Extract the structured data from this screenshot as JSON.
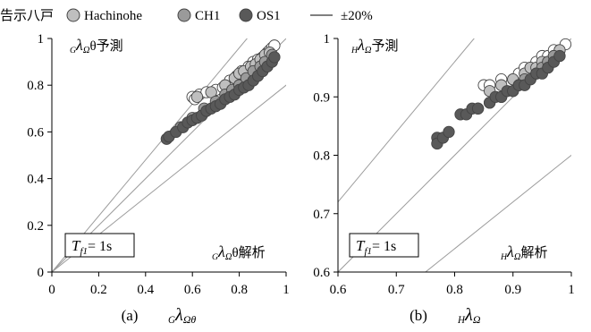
{
  "legend": {
    "lead": "告示八戸",
    "items": [
      {
        "label": "Hachinohe",
        "fill": "#bfbfbf"
      },
      {
        "label": "CH1",
        "fill": "#9a9a9a"
      },
      {
        "label": "OS1",
        "fill": "#595959"
      }
    ],
    "ref_line_label": "±20%"
  },
  "colors": {
    "white_points": "#ffffff",
    "ref_lines": "#9c9c9c",
    "axis": "#000000",
    "marker_edge": "#444444"
  },
  "chart_data": [
    {
      "type": "scatter",
      "panel_label": "(a)",
      "xlabel": "GλΩθ",
      "ylabel_annotation": "GλΩθ予測",
      "xlabel_annotation": "GλΩθ解析",
      "box_text": "Tf1= 1s",
      "xlim": [
        0,
        1
      ],
      "ylim": [
        0,
        1
      ],
      "xticks": [
        "0",
        "0.2",
        "0.4",
        "0.6",
        "0.8",
        "1"
      ],
      "yticks": [
        "0",
        "0.2",
        "0.4",
        "0.6",
        "0.8",
        "1"
      ],
      "ref_lines": [
        {
          "label": "1:1",
          "slope": 1.0
        },
        {
          "label": "+20%",
          "slope": 1.2
        },
        {
          "label": "-20%",
          "slope": 0.8
        }
      ],
      "series": [
        {
          "marker_fill": "#ffffff",
          "points": [
            [
              0.6,
              0.75
            ],
            [
              0.61,
              0.74
            ],
            [
              0.63,
              0.76
            ],
            [
              0.66,
              0.77
            ],
            [
              0.7,
              0.78
            ],
            [
              0.73,
              0.79
            ],
            [
              0.76,
              0.82
            ],
            [
              0.79,
              0.84
            ],
            [
              0.81,
              0.86
            ],
            [
              0.84,
              0.88
            ],
            [
              0.86,
              0.9
            ],
            [
              0.88,
              0.91
            ],
            [
              0.9,
              0.92
            ],
            [
              0.92,
              0.94
            ],
            [
              0.93,
              0.95
            ],
            [
              0.94,
              0.96
            ],
            [
              0.95,
              0.97
            ]
          ]
        },
        {
          "marker_fill": "#bfbfbf",
          "points": [
            [
              0.62,
              0.75
            ],
            [
              0.68,
              0.77
            ],
            [
              0.74,
              0.8
            ],
            [
              0.78,
              0.83
            ],
            [
              0.8,
              0.85
            ],
            [
              0.82,
              0.86
            ],
            [
              0.85,
              0.88
            ],
            [
              0.87,
              0.89
            ],
            [
              0.89,
              0.91
            ],
            [
              0.91,
              0.93
            ],
            [
              0.93,
              0.94
            ]
          ]
        },
        {
          "marker_fill": "#9a9a9a",
          "points": [
            [
              0.55,
              0.62
            ],
            [
              0.6,
              0.66
            ],
            [
              0.65,
              0.7
            ],
            [
              0.7,
              0.73
            ],
            [
              0.74,
              0.76
            ],
            [
              0.77,
              0.78
            ],
            [
              0.8,
              0.8
            ],
            [
              0.83,
              0.83
            ],
            [
              0.86,
              0.86
            ],
            [
              0.89,
              0.88
            ],
            [
              0.91,
              0.9
            ],
            [
              0.94,
              0.93
            ]
          ]
        },
        {
          "marker_fill": "#595959",
          "points": [
            [
              0.49,
              0.57
            ],
            [
              0.5,
              0.58
            ],
            [
              0.53,
              0.6
            ],
            [
              0.56,
              0.62
            ],
            [
              0.58,
              0.64
            ],
            [
              0.6,
              0.65
            ],
            [
              0.62,
              0.66
            ],
            [
              0.64,
              0.67
            ],
            [
              0.66,
              0.69
            ],
            [
              0.68,
              0.7
            ],
            [
              0.7,
              0.71
            ],
            [
              0.72,
              0.72
            ],
            [
              0.74,
              0.74
            ],
            [
              0.76,
              0.75
            ],
            [
              0.78,
              0.76
            ],
            [
              0.8,
              0.78
            ],
            [
              0.82,
              0.79
            ],
            [
              0.84,
              0.8
            ],
            [
              0.86,
              0.82
            ],
            [
              0.88,
              0.84
            ],
            [
              0.9,
              0.86
            ],
            [
              0.92,
              0.88
            ],
            [
              0.94,
              0.9
            ],
            [
              0.95,
              0.92
            ]
          ]
        }
      ]
    },
    {
      "type": "scatter",
      "panel_label": "(b)",
      "xlabel": "HλΩ",
      "ylabel_annotation": "HλΩ予測",
      "xlabel_annotation": "HλΩ解析",
      "box_text": "Tf1= 1s",
      "xlim": [
        0.6,
        1
      ],
      "ylim": [
        0.6,
        1
      ],
      "xticks": [
        "0.6",
        "0.7",
        "0.8",
        "0.9",
        "1"
      ],
      "yticks": [
        "0.6",
        "0.7",
        "0.8",
        "0.9",
        "1"
      ],
      "ref_lines": [
        {
          "label": "1:1",
          "slope": 1.0
        },
        {
          "label": "+20%",
          "slope": 1.2
        },
        {
          "label": "-20%",
          "slope": 0.8
        }
      ],
      "series": [
        {
          "marker_fill": "#ffffff",
          "points": [
            [
              0.85,
              0.92
            ],
            [
              0.86,
              0.92
            ],
            [
              0.88,
              0.93
            ],
            [
              0.9,
              0.93
            ],
            [
              0.91,
              0.94
            ],
            [
              0.92,
              0.95
            ],
            [
              0.93,
              0.95
            ],
            [
              0.94,
              0.96
            ],
            [
              0.95,
              0.97
            ],
            [
              0.96,
              0.97
            ],
            [
              0.97,
              0.98
            ],
            [
              0.98,
              0.98
            ],
            [
              0.99,
              0.99
            ]
          ]
        },
        {
          "marker_fill": "#bfbfbf",
          "points": [
            [
              0.86,
              0.91
            ],
            [
              0.88,
              0.92
            ],
            [
              0.9,
              0.93
            ],
            [
              0.92,
              0.94
            ],
            [
              0.93,
              0.95
            ],
            [
              0.94,
              0.95
            ],
            [
              0.95,
              0.96
            ],
            [
              0.96,
              0.96
            ],
            [
              0.97,
              0.97
            ],
            [
              0.98,
              0.98
            ]
          ]
        },
        {
          "marker_fill": "#9a9a9a",
          "points": [
            [
              0.84,
              0.88
            ],
            [
              0.86,
              0.89
            ],
            [
              0.88,
              0.9
            ],
            [
              0.9,
              0.91
            ],
            [
              0.91,
              0.92
            ],
            [
              0.92,
              0.93
            ],
            [
              0.94,
              0.94
            ],
            [
              0.95,
              0.95
            ],
            [
              0.96,
              0.96
            ],
            [
              0.97,
              0.97
            ]
          ]
        },
        {
          "marker_fill": "#595959",
          "points": [
            [
              0.77,
              0.83
            ],
            [
              0.77,
              0.82
            ],
            [
              0.78,
              0.83
            ],
            [
              0.79,
              0.84
            ],
            [
              0.81,
              0.87
            ],
            [
              0.82,
              0.87
            ],
            [
              0.83,
              0.88
            ],
            [
              0.84,
              0.88
            ],
            [
              0.86,
              0.89
            ],
            [
              0.87,
              0.9
            ],
            [
              0.88,
              0.9
            ],
            [
              0.89,
              0.91
            ],
            [
              0.9,
              0.91
            ],
            [
              0.91,
              0.92
            ],
            [
              0.92,
              0.92
            ],
            [
              0.93,
              0.93
            ],
            [
              0.94,
              0.94
            ],
            [
              0.95,
              0.94
            ],
            [
              0.96,
              0.95
            ],
            [
              0.97,
              0.96
            ],
            [
              0.98,
              0.97
            ]
          ]
        }
      ]
    }
  ]
}
